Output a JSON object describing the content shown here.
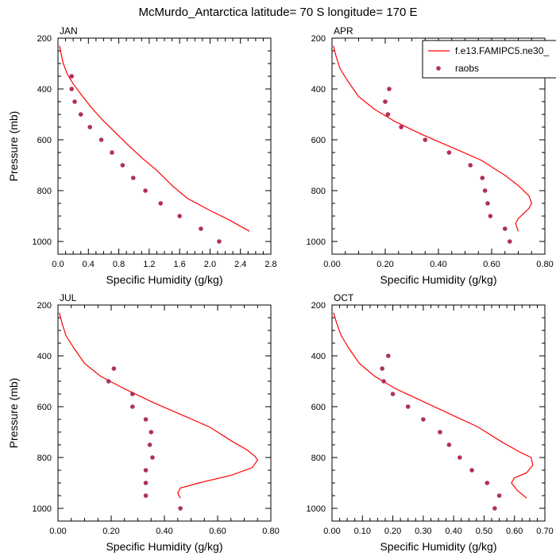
{
  "title": "McMurdo_Antarctica  latitude= 70 S longitude= 170 E",
  "legend": {
    "placement": "top-right of APR panel",
    "entries": [
      {
        "name": "f.e13.FAMIPC5.ne30_",
        "type": "line",
        "color": "#ff0000"
      },
      {
        "name": "raobs",
        "type": "marker",
        "color": "#b0305a"
      }
    ]
  },
  "chart_data": [
    {
      "type": "line",
      "panel": "JAN",
      "xlabel": "Specific Humidity (g/kg)",
      "ylabel": "Pressure (mb)",
      "xlim": [
        0,
        2.8
      ],
      "ylim": [
        200,
        1050
      ],
      "y_reversed": true,
      "xticks": [
        0.0,
        0.4,
        0.8,
        1.2,
        1.6,
        2.0,
        2.4,
        2.8
      ],
      "xtick_labels": [
        "0.0",
        "0.4",
        "0.8",
        "1.2",
        "1.6",
        "2.0",
        "2.4",
        "2.8"
      ],
      "yticks": [
        200,
        400,
        600,
        800,
        1000
      ],
      "series": [
        {
          "name": "f.e13.FAMIPC5.ne30_",
          "kind": "line",
          "color": "#ff0000",
          "x": [
            0.02,
            0.04,
            0.07,
            0.12,
            0.2,
            0.3,
            0.43,
            0.58,
            0.75,
            0.92,
            1.1,
            1.3,
            1.5,
            1.7,
            1.98,
            2.25,
            2.52
          ],
          "y": [
            230,
            260,
            300,
            340,
            380,
            420,
            470,
            520,
            570,
            620,
            670,
            720,
            780,
            830,
            875,
            915,
            960
          ]
        },
        {
          "name": "raobs",
          "kind": "scatter",
          "color": "#b0305a",
          "x": [
            0.18,
            0.18,
            0.22,
            0.3,
            0.42,
            0.57,
            0.71,
            0.85,
            0.99,
            1.15,
            1.35,
            1.6,
            1.88,
            2.12
          ],
          "y": [
            350,
            400,
            450,
            500,
            550,
            600,
            650,
            700,
            750,
            800,
            850,
            900,
            950,
            1000
          ]
        }
      ]
    },
    {
      "type": "line",
      "panel": "APR",
      "xlabel": "Specific Humidity (g/kg)",
      "ylabel": "",
      "xlim": [
        0,
        0.8
      ],
      "ylim": [
        200,
        1050
      ],
      "y_reversed": true,
      "xticks": [
        0.0,
        0.2,
        0.4,
        0.6,
        0.8
      ],
      "xtick_labels": [
        "0.00",
        "0.20",
        "0.40",
        "0.60",
        "0.80"
      ],
      "yticks": [
        200,
        400,
        600,
        800,
        1000
      ],
      "series": [
        {
          "name": "f.e13.FAMIPC5.ne30_",
          "kind": "line",
          "color": "#ff0000",
          "x": [
            0.005,
            0.015,
            0.03,
            0.06,
            0.1,
            0.16,
            0.24,
            0.34,
            0.45,
            0.56,
            0.65,
            0.7,
            0.74,
            0.75,
            0.74,
            0.72,
            0.7,
            0.69,
            0.7
          ],
          "y": [
            230,
            270,
            320,
            370,
            430,
            480,
            530,
            580,
            630,
            680,
            740,
            780,
            820,
            850,
            870,
            890,
            910,
            930,
            960
          ]
        },
        {
          "name": "raobs",
          "kind": "scatter",
          "color": "#b0305a",
          "x": [
            0.215,
            0.2,
            0.21,
            0.26,
            0.35,
            0.44,
            0.52,
            0.565,
            0.575,
            0.585,
            0.595,
            0.65,
            0.668
          ],
          "y": [
            400,
            450,
            500,
            550,
            600,
            650,
            700,
            750,
            800,
            850,
            900,
            950,
            1000
          ]
        }
      ]
    },
    {
      "type": "line",
      "panel": "JUL",
      "xlabel": "Specific Humidity (g/kg)",
      "ylabel": "Pressure (mb)",
      "xlim": [
        0,
        0.8
      ],
      "ylim": [
        200,
        1050
      ],
      "y_reversed": true,
      "xticks": [
        0.0,
        0.2,
        0.4,
        0.6,
        0.8
      ],
      "xtick_labels": [
        "0.00",
        "0.20",
        "0.40",
        "0.60",
        "0.80"
      ],
      "yticks": [
        200,
        400,
        600,
        800,
        1000
      ],
      "series": [
        {
          "name": "f.e13.FAMIPC5.ne30_",
          "kind": "line",
          "color": "#ff0000",
          "x": [
            0.005,
            0.015,
            0.03,
            0.06,
            0.1,
            0.16,
            0.25,
            0.35,
            0.46,
            0.57,
            0.66,
            0.71,
            0.74,
            0.75,
            0.73,
            0.65,
            0.53,
            0.46,
            0.45,
            0.46
          ],
          "y": [
            230,
            270,
            320,
            370,
            430,
            480,
            530,
            580,
            630,
            680,
            740,
            770,
            795,
            810,
            840,
            870,
            900,
            920,
            940,
            960
          ]
        },
        {
          "name": "raobs",
          "kind": "scatter",
          "color": "#b0305a",
          "x": [
            0.21,
            0.19,
            0.28,
            0.28,
            0.33,
            0.35,
            0.345,
            0.355,
            0.33,
            0.33,
            0.33,
            0.46
          ],
          "y": [
            450,
            500,
            550,
            600,
            650,
            700,
            750,
            800,
            850,
            900,
            950,
            1000
          ]
        }
      ]
    },
    {
      "type": "line",
      "panel": "OCT",
      "xlabel": "Specific Humidity (g/kg)",
      "ylabel": "",
      "xlim": [
        0,
        0.7
      ],
      "ylim": [
        200,
        1050
      ],
      "y_reversed": true,
      "xticks": [
        0.0,
        0.1,
        0.2,
        0.3,
        0.4,
        0.5,
        0.6,
        0.7
      ],
      "xtick_labels": [
        "0.00",
        "0.10",
        "0.20",
        "0.30",
        "0.40",
        "0.50",
        "0.60",
        "0.70"
      ],
      "yticks": [
        200,
        400,
        600,
        800,
        1000
      ],
      "series": [
        {
          "name": "f.e13.FAMIPC5.ne30_",
          "kind": "line",
          "color": "#ff0000",
          "x": [
            0.005,
            0.015,
            0.03,
            0.055,
            0.09,
            0.14,
            0.21,
            0.3,
            0.39,
            0.48,
            0.56,
            0.62,
            0.655,
            0.66,
            0.64,
            0.6,
            0.59,
            0.61,
            0.64
          ],
          "y": [
            230,
            270,
            320,
            370,
            430,
            480,
            530,
            580,
            630,
            680,
            740,
            780,
            800,
            830,
            860,
            880,
            900,
            930,
            960
          ]
        },
        {
          "name": "raobs",
          "kind": "scatter",
          "color": "#b0305a",
          "x": [
            0.185,
            0.165,
            0.17,
            0.2,
            0.25,
            0.3,
            0.355,
            0.385,
            0.42,
            0.46,
            0.51,
            0.55,
            0.535
          ],
          "y": [
            400,
            450,
            500,
            550,
            600,
            650,
            700,
            750,
            800,
            850,
            900,
            950,
            1000
          ]
        }
      ]
    }
  ]
}
